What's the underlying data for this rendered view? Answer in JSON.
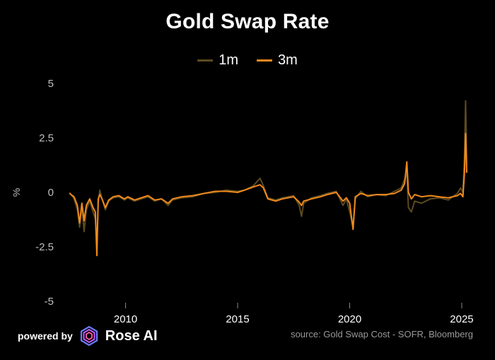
{
  "footer": {
    "powered_by": "powered by",
    "brand": "Rose AI",
    "source": "source: Gold Swap Cost - SOFR, Bloomberg"
  },
  "colors": {
    "background": "#000000",
    "series_1m": "#5c4a20",
    "series_3m": "#f08a1c",
    "tick_text": "#bfbfbf"
  },
  "chart_data": {
    "type": "line",
    "title": "Gold Swap Rate",
    "xlabel": "",
    "ylabel": "%",
    "xlim": [
      2007.3,
      2025.6
    ],
    "ylim": [
      -5,
      5
    ],
    "x_ticks": [
      2010,
      2015,
      2020,
      2025
    ],
    "y_ticks": [
      5,
      2.5,
      0,
      -2.5,
      -5
    ],
    "y_tick_labels": [
      "5",
      "2.5",
      "0",
      "-2.5",
      "-5"
    ],
    "grid": false,
    "legend": "top-center",
    "series": [
      {
        "name": "1m",
        "color": "#5c4a20",
        "points": [
          [
            2007.5,
            0.0
          ],
          [
            2007.7,
            -0.3
          ],
          [
            2007.85,
            -0.8
          ],
          [
            2007.95,
            -1.6
          ],
          [
            2008.05,
            -0.6
          ],
          [
            2008.15,
            -1.8
          ],
          [
            2008.25,
            -0.8
          ],
          [
            2008.4,
            -0.4
          ],
          [
            2008.55,
            -0.9
          ],
          [
            2008.65,
            -1.2
          ],
          [
            2008.72,
            -2.3
          ],
          [
            2008.78,
            -0.5
          ],
          [
            2008.85,
            0.1
          ],
          [
            2008.95,
            -0.3
          ],
          [
            2009.1,
            -0.8
          ],
          [
            2009.25,
            -0.4
          ],
          [
            2009.45,
            -0.25
          ],
          [
            2009.7,
            -0.2
          ],
          [
            2009.95,
            -0.35
          ],
          [
            2010.1,
            -0.25
          ],
          [
            2010.4,
            -0.4
          ],
          [
            2010.7,
            -0.3
          ],
          [
            2011.0,
            -0.2
          ],
          [
            2011.3,
            -0.4
          ],
          [
            2011.6,
            -0.3
          ],
          [
            2011.9,
            -0.6
          ],
          [
            2012.1,
            -0.35
          ],
          [
            2012.5,
            -0.25
          ],
          [
            2013.0,
            -0.2
          ],
          [
            2013.5,
            -0.05
          ],
          [
            2014.0,
            0.0
          ],
          [
            2014.5,
            0.1
          ],
          [
            2015.0,
            0.05
          ],
          [
            2015.3,
            0.1
          ],
          [
            2015.7,
            0.3
          ],
          [
            2016.0,
            0.65
          ],
          [
            2016.15,
            0.3
          ],
          [
            2016.35,
            -0.25
          ],
          [
            2016.7,
            -0.35
          ],
          [
            2017.0,
            -0.25
          ],
          [
            2017.5,
            -0.15
          ],
          [
            2017.75,
            -0.6
          ],
          [
            2017.85,
            -1.1
          ],
          [
            2017.95,
            -0.5
          ],
          [
            2018.3,
            -0.25
          ],
          [
            2018.7,
            -0.15
          ],
          [
            2019.0,
            -0.05
          ],
          [
            2019.4,
            0.05
          ],
          [
            2019.7,
            -0.6
          ],
          [
            2019.85,
            -0.3
          ],
          [
            2020.0,
            -0.9
          ],
          [
            2020.15,
            -1.6
          ],
          [
            2020.25,
            -0.3
          ],
          [
            2020.5,
            0.05
          ],
          [
            2020.8,
            -0.2
          ],
          [
            2021.2,
            -0.1
          ],
          [
            2021.6,
            -0.15
          ],
          [
            2022.0,
            0.05
          ],
          [
            2022.3,
            0.2
          ],
          [
            2022.45,
            0.6
          ],
          [
            2022.55,
            0.9
          ],
          [
            2022.62,
            -0.7
          ],
          [
            2022.75,
            -0.9
          ],
          [
            2022.9,
            -0.4
          ],
          [
            2023.2,
            -0.5
          ],
          [
            2023.6,
            -0.3
          ],
          [
            2024.0,
            -0.25
          ],
          [
            2024.4,
            -0.35
          ],
          [
            2024.8,
            -0.05
          ],
          [
            2024.95,
            0.2
          ],
          [
            2025.05,
            0.0
          ],
          [
            2025.12,
            1.6
          ],
          [
            2025.17,
            4.2
          ],
          [
            2025.2,
            2.8
          ],
          [
            2025.22,
            1.2
          ]
        ]
      },
      {
        "name": "3m",
        "color": "#f08a1c",
        "points": [
          [
            2007.5,
            -0.05
          ],
          [
            2007.7,
            -0.2
          ],
          [
            2007.85,
            -0.6
          ],
          [
            2007.95,
            -1.4
          ],
          [
            2008.05,
            -0.5
          ],
          [
            2008.15,
            -1.3
          ],
          [
            2008.25,
            -0.6
          ],
          [
            2008.4,
            -0.3
          ],
          [
            2008.55,
            -0.7
          ],
          [
            2008.65,
            -0.9
          ],
          [
            2008.72,
            -2.9
          ],
          [
            2008.78,
            -0.3
          ],
          [
            2008.85,
            -0.1
          ],
          [
            2008.95,
            -0.3
          ],
          [
            2009.1,
            -0.7
          ],
          [
            2009.25,
            -0.35
          ],
          [
            2009.45,
            -0.2
          ],
          [
            2009.7,
            -0.15
          ],
          [
            2009.95,
            -0.3
          ],
          [
            2010.1,
            -0.2
          ],
          [
            2010.4,
            -0.35
          ],
          [
            2010.7,
            -0.25
          ],
          [
            2011.0,
            -0.15
          ],
          [
            2011.3,
            -0.35
          ],
          [
            2011.6,
            -0.3
          ],
          [
            2011.9,
            -0.5
          ],
          [
            2012.1,
            -0.3
          ],
          [
            2012.5,
            -0.2
          ],
          [
            2013.0,
            -0.15
          ],
          [
            2013.5,
            -0.05
          ],
          [
            2014.0,
            0.05
          ],
          [
            2014.5,
            0.05
          ],
          [
            2015.0,
            0.0
          ],
          [
            2015.3,
            0.1
          ],
          [
            2015.7,
            0.25
          ],
          [
            2016.0,
            0.35
          ],
          [
            2016.15,
            0.2
          ],
          [
            2016.35,
            -0.3
          ],
          [
            2016.7,
            -0.4
          ],
          [
            2017.0,
            -0.3
          ],
          [
            2017.5,
            -0.2
          ],
          [
            2017.75,
            -0.45
          ],
          [
            2017.85,
            -0.6
          ],
          [
            2017.95,
            -0.4
          ],
          [
            2018.3,
            -0.3
          ],
          [
            2018.7,
            -0.2
          ],
          [
            2019.0,
            -0.1
          ],
          [
            2019.4,
            0.0
          ],
          [
            2019.7,
            -0.4
          ],
          [
            2019.85,
            -0.25
          ],
          [
            2020.0,
            -0.5
          ],
          [
            2020.15,
            -1.7
          ],
          [
            2020.25,
            -0.2
          ],
          [
            2020.5,
            -0.05
          ],
          [
            2020.8,
            -0.15
          ],
          [
            2021.2,
            -0.1
          ],
          [
            2021.6,
            -0.1
          ],
          [
            2022.0,
            -0.05
          ],
          [
            2022.3,
            0.1
          ],
          [
            2022.45,
            0.4
          ],
          [
            2022.55,
            1.4
          ],
          [
            2022.62,
            0.0
          ],
          [
            2022.75,
            -0.3
          ],
          [
            2022.9,
            -0.1
          ],
          [
            2023.2,
            -0.2
          ],
          [
            2023.6,
            -0.15
          ],
          [
            2024.0,
            -0.2
          ],
          [
            2024.4,
            -0.25
          ],
          [
            2024.8,
            -0.15
          ],
          [
            2024.95,
            -0.05
          ],
          [
            2025.05,
            -0.2
          ],
          [
            2025.12,
            0.9
          ],
          [
            2025.17,
            2.7
          ],
          [
            2025.2,
            1.8
          ],
          [
            2025.22,
            0.9
          ]
        ]
      }
    ]
  }
}
